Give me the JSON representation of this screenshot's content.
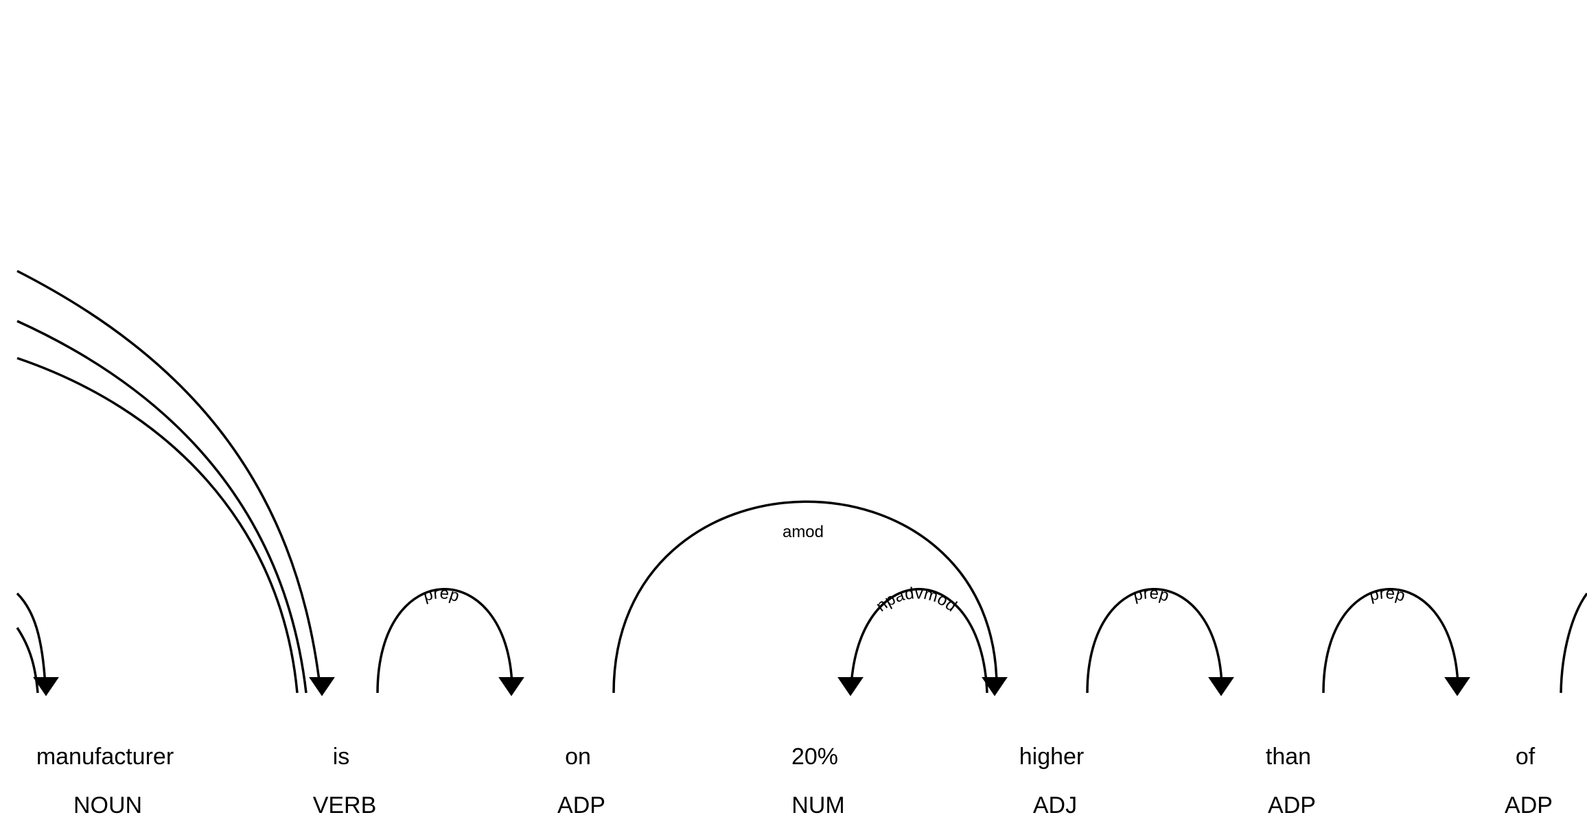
{
  "diagram": {
    "tokens": [
      {
        "text": "manufacturer",
        "tag": "NOUN"
      },
      {
        "text": "is",
        "tag": "VERB"
      },
      {
        "text": "on",
        "tag": "ADP"
      },
      {
        "text": "20%",
        "tag": "NUM"
      },
      {
        "text": "higher",
        "tag": "ADJ"
      },
      {
        "text": "than",
        "tag": "ADP"
      },
      {
        "text": "of",
        "tag": "ADP"
      }
    ],
    "arcs": [
      {
        "label": "prep",
        "from": "is",
        "to": "on"
      },
      {
        "label": "amod",
        "from": "on",
        "to": "higher"
      },
      {
        "label": "npadvmod",
        "from": "higher",
        "to": "20%"
      },
      {
        "label": "prep",
        "from": "higher",
        "to": "than"
      },
      {
        "label": "prep",
        "from": "than",
        "to": "of"
      }
    ],
    "colors": {
      "stroke": "#000000",
      "text": "#000000",
      "background": "#ffffff"
    }
  }
}
